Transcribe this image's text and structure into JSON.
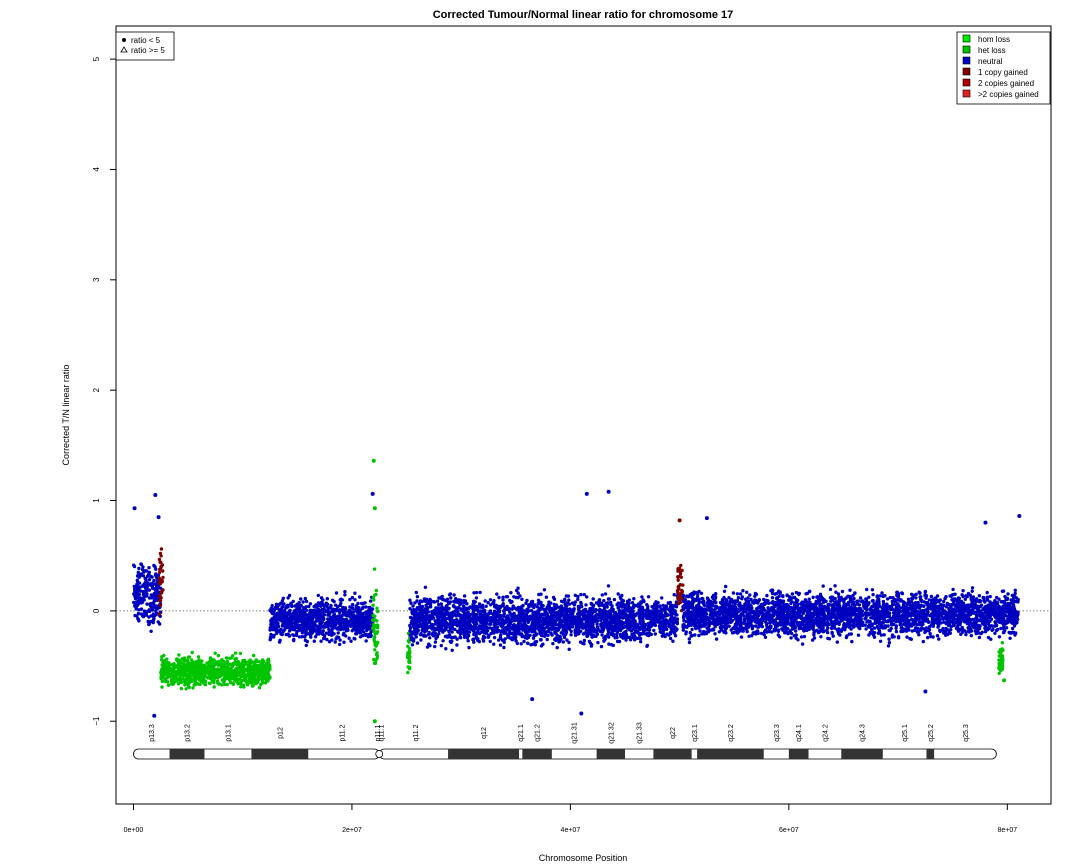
{
  "chart_data": {
    "type": "scatter",
    "title": "Corrected Tumour/Normal linear ratio for chromosome  17",
    "xlabel": "Chromosome Position",
    "ylabel": "Corrected T/N linear ratio",
    "xlim": [
      -1600000,
      84000000
    ],
    "ylim": [
      -1.75,
      5.3
    ],
    "x_ticks": [
      {
        "value": 0,
        "label": "0e+00"
      },
      {
        "value": 20000000,
        "label": "2e+07"
      },
      {
        "value": 40000000,
        "label": "4e+07"
      },
      {
        "value": 60000000,
        "label": "6e+07"
      },
      {
        "value": 80000000,
        "label": "8e+07"
      }
    ],
    "y_ticks": [
      {
        "value": -1,
        "label": "−1"
      },
      {
        "value": 0,
        "label": "0"
      },
      {
        "value": 1,
        "label": "1"
      },
      {
        "value": 2,
        "label": "2"
      },
      {
        "value": 3,
        "label": "3"
      },
      {
        "value": 4,
        "label": "4"
      },
      {
        "value": 5,
        "label": "5"
      }
    ],
    "reference_line": {
      "y": 0,
      "style": "dotted"
    },
    "marker_legend": {
      "position": "top-left",
      "items": [
        {
          "symbol": "filled-circle",
          "label": "ratio < 5"
        },
        {
          "symbol": "open-triangle",
          "label": "ratio >= 5"
        }
      ]
    },
    "legend": {
      "position": "top-right",
      "items": [
        {
          "label": "hom loss",
          "color": "#00ee00"
        },
        {
          "label": "het loss",
          "color": "#00c400"
        },
        {
          "label": "neutral",
          "color": "#0000c0"
        },
        {
          "label": "1 copy gained",
          "color": "#800000"
        },
        {
          "label": "2 copies gained",
          "color": "#b00000"
        },
        {
          "label": ">2 copies gained",
          "color": "#e02020"
        }
      ]
    },
    "segments": [
      {
        "status": "neutral",
        "color": "#0000c0",
        "start": 0,
        "end": 2500000,
        "mean": 0.15,
        "spread": 0.22
      },
      {
        "status": "1 copy gained",
        "color": "#800000",
        "start": 2350000,
        "end": 2700000,
        "mean": 0.25,
        "spread": 0.25
      },
      {
        "status": "het loss",
        "color": "#00c400",
        "start": 2500000,
        "end": 12500000,
        "mean": -0.55,
        "spread": 0.1
      },
      {
        "status": "neutral",
        "color": "#0000c0",
        "start": 12500000,
        "end": 22000000,
        "mean": -0.08,
        "spread": 0.15
      },
      {
        "status": "het loss",
        "color": "#00c400",
        "start": 21900000,
        "end": 22400000,
        "mean": -0.15,
        "spread": 0.3
      },
      {
        "status": "het loss",
        "color": "#00c400",
        "start": 25100000,
        "end": 25300000,
        "mean": -0.4,
        "spread": 0.15
      },
      {
        "status": "neutral",
        "color": "#0000c0",
        "start": 25300000,
        "end": 49800000,
        "mean": -0.08,
        "spread": 0.17
      },
      {
        "status": "1 copy gained",
        "color": "#800000",
        "start": 49800000,
        "end": 50300000,
        "mean": 0.2,
        "spread": 0.2
      },
      {
        "status": "neutral",
        "color": "#0000c0",
        "start": 50300000,
        "end": 81000000,
        "mean": -0.03,
        "spread": 0.16
      },
      {
        "status": "het loss",
        "color": "#00c400",
        "start": 79200000,
        "end": 79600000,
        "mean": -0.45,
        "spread": 0.1
      }
    ],
    "outliers": [
      {
        "x": 2000000,
        "y": 1.05,
        "color": "#0000c0"
      },
      {
        "x": 2300000,
        "y": 0.85,
        "color": "#0000c0"
      },
      {
        "x": 100000,
        "y": 0.93,
        "color": "#0000c0"
      },
      {
        "x": 21900000,
        "y": 1.06,
        "color": "#0000c0"
      },
      {
        "x": 22000000,
        "y": 1.36,
        "color": "#00c400"
      },
      {
        "x": 22100000,
        "y": 0.93,
        "color": "#00c400"
      },
      {
        "x": 41500000,
        "y": 1.06,
        "color": "#0000c0"
      },
      {
        "x": 43500000,
        "y": 1.08,
        "color": "#0000c0"
      },
      {
        "x": 50000000,
        "y": 0.82,
        "color": "#800000"
      },
      {
        "x": 52500000,
        "y": 0.84,
        "color": "#0000c0"
      },
      {
        "x": 78000000,
        "y": 0.8,
        "color": "#0000c0"
      },
      {
        "x": 81100000,
        "y": 0.86,
        "color": "#0000c0"
      },
      {
        "x": 1900000,
        "y": -0.95,
        "color": "#0000c0"
      },
      {
        "x": 22100000,
        "y": -1.0,
        "color": "#00c400"
      },
      {
        "x": 41000000,
        "y": -0.93,
        "color": "#0000c0"
      },
      {
        "x": 36500000,
        "y": -0.8,
        "color": "#0000c0"
      },
      {
        "x": 72500000,
        "y": -0.73,
        "color": "#0000c0"
      },
      {
        "x": 79700000,
        "y": -0.63,
        "color": "#00c400"
      }
    ],
    "ideogram": {
      "centromere": 22500000,
      "bands": [
        {
          "name": "p13.3",
          "start": 0,
          "end": 3300000,
          "stain": "gneg"
        },
        {
          "name": "p13.2",
          "start": 3300000,
          "end": 6500000,
          "stain": "gpos"
        },
        {
          "name": "p13.1",
          "start": 6500000,
          "end": 10800000,
          "stain": "gneg"
        },
        {
          "name": "p12",
          "start": 10800000,
          "end": 16000000,
          "stain": "gpos"
        },
        {
          "name": "p11.2",
          "start": 16000000,
          "end": 22200000,
          "stain": "gneg"
        },
        {
          "name": "p11.1",
          "start": 22200000,
          "end": 22500000,
          "stain": "acen"
        },
        {
          "name": "q11.1",
          "start": 22500000,
          "end": 22800000,
          "stain": "acen"
        },
        {
          "name": "q11.2",
          "start": 22800000,
          "end": 28800000,
          "stain": "gneg"
        },
        {
          "name": "q12",
          "start": 28800000,
          "end": 35300000,
          "stain": "gpos"
        },
        {
          "name": "q21.1",
          "start": 35300000,
          "end": 35600000,
          "stain": "gneg"
        },
        {
          "name": "q21.2",
          "start": 35600000,
          "end": 38300000,
          "stain": "gpos"
        },
        {
          "name": "q21.31",
          "start": 38300000,
          "end": 42400000,
          "stain": "gneg"
        },
        {
          "name": "q21.32",
          "start": 42400000,
          "end": 45000000,
          "stain": "gpos"
        },
        {
          "name": "q21.33",
          "start": 45000000,
          "end": 47600000,
          "stain": "gneg"
        },
        {
          "name": "q22",
          "start": 47600000,
          "end": 51100000,
          "stain": "gpos"
        },
        {
          "name": "q23.1",
          "start": 51100000,
          "end": 51600000,
          "stain": "gneg"
        },
        {
          "name": "q23.2",
          "start": 51600000,
          "end": 57700000,
          "stain": "gpos"
        },
        {
          "name": "q23.3",
          "start": 57700000,
          "end": 60000000,
          "stain": "gneg"
        },
        {
          "name": "q24.1",
          "start": 60000000,
          "end": 61800000,
          "stain": "gpos"
        },
        {
          "name": "q24.2",
          "start": 61800000,
          "end": 64800000,
          "stain": "gneg"
        },
        {
          "name": "q24.3",
          "start": 64800000,
          "end": 68600000,
          "stain": "gpos"
        },
        {
          "name": "q25.1",
          "start": 68600000,
          "end": 72600000,
          "stain": "gneg"
        },
        {
          "name": "q25.2",
          "start": 72600000,
          "end": 73300000,
          "stain": "gpos"
        },
        {
          "name": "q25.3",
          "start": 73300000,
          "end": 79000000,
          "stain": "gneg"
        }
      ]
    }
  }
}
